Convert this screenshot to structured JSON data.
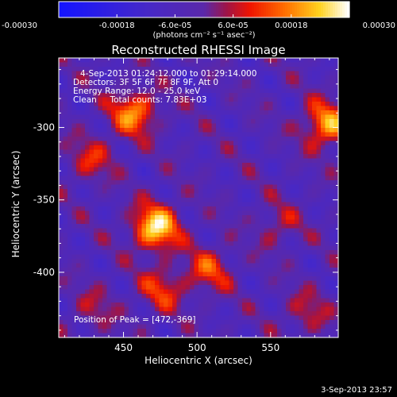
{
  "chart_data": {
    "type": "heatmap",
    "title": "Reconstructed RHESSI Image",
    "xlabel": "Heliocentric X (arcsec)",
    "ylabel": "Heliocentric Y (arcsec)",
    "xlim": [
      406,
      596
    ],
    "ylim": [
      -445,
      -252
    ],
    "x_ticks": [
      "450",
      "500",
      "550"
    ],
    "x_tick_values": [
      450,
      500,
      550
    ],
    "y_ticks": [
      "-300",
      "-350",
      "-400"
    ],
    "y_tick_values": [
      -300,
      -350,
      -400
    ],
    "colorbar": {
      "range": [
        -0.0003,
        0.0003
      ],
      "tick_labels": [
        "-0.00030",
        "-0.00018",
        "-6.0e-05",
        "6.0e-05",
        "0.00018",
        "0.00030"
      ],
      "tick_values": [
        -0.0003,
        -0.00018,
        -6e-05,
        6e-05,
        0.00018,
        0.0003
      ],
      "units": "(photons cm⁻² s⁻¹ asec⁻²)"
    },
    "annotations": {
      "time": "4-Sep-2013 01:24:12.000 to 01:29:14.000",
      "detectors": "Detectors: 3F 5F 6F 7F 8F 9F, Att 0",
      "energy": "Energy Range: 12.0 - 25.0 keV",
      "clean": "Clean     Total counts: 7.83E+03",
      "peak": "Position of Peak = [472,-369]"
    },
    "peak": [
      472,
      -369
    ],
    "sources": [
      {
        "x": 472,
        "y": -369,
        "peak": 0.0003
      },
      {
        "x": 457,
        "y": -290,
        "peak": 0.00022
      },
      {
        "x": 588,
        "y": -298,
        "peak": 0.00024
      },
      {
        "x": 428,
        "y": -322,
        "peak": 0.00012
      },
      {
        "x": 508,
        "y": -398,
        "peak": 0.00015
      },
      {
        "x": 476,
        "y": -412,
        "peak": 0.00014
      },
      {
        "x": 555,
        "y": -368,
        "peak": 9e-05
      },
      {
        "x": 575,
        "y": -428,
        "peak": 0.0001
      },
      {
        "x": 430,
        "y": -425,
        "peak": 8e-05
      }
    ],
    "colors": {
      "negative": "#1a1aff",
      "zero": "#5a2ab0",
      "positive_mid": "#ff3000",
      "positive_max": "#ffffff"
    }
  },
  "footer": {
    "date": "3-Sep-2013 23:57"
  }
}
